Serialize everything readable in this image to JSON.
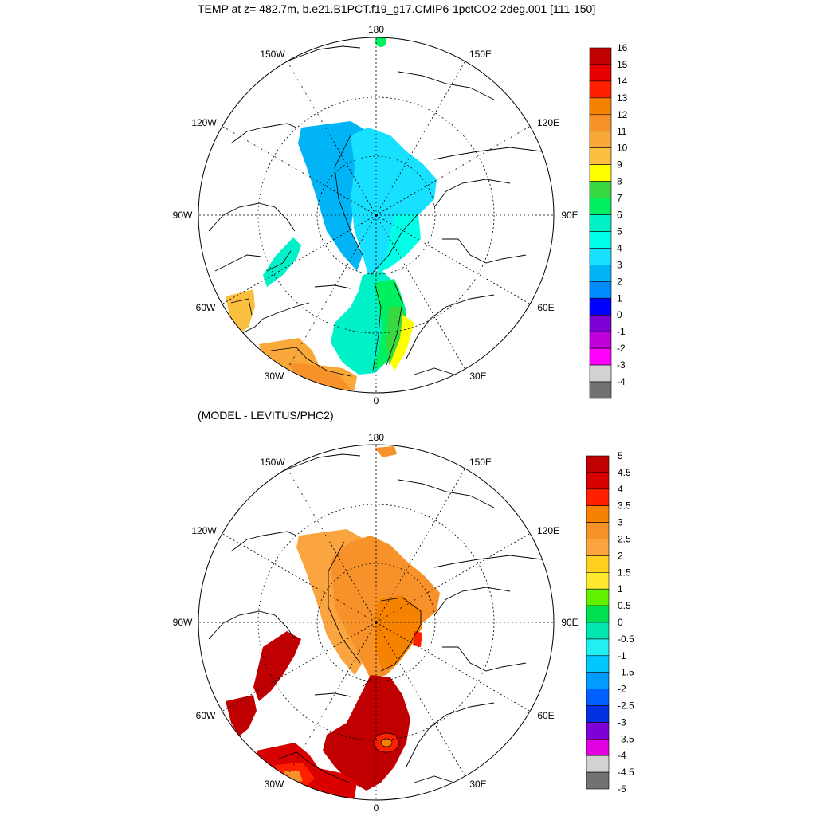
{
  "top_panel": {
    "title": "TEMP at z= 482.7m, b.e21.B1PCT.f19_g17.CMIP6-1pctCO2-2deg.001 [111-150]",
    "longitude_labels": {
      "lon180": "180",
      "lon150w": "150W",
      "lon150e": "150E",
      "lon120w": "120W",
      "lon120e": "120E",
      "lon90w": "90W",
      "lon90e": "90E",
      "lon60w": "60W",
      "lon60e": "60E",
      "lon30w": "30W",
      "lon30e": "30E",
      "lon0": "0"
    },
    "colorbar": {
      "labels": [
        "16",
        "15",
        "14",
        "13",
        "12",
        "11",
        "10",
        "9",
        "8",
        "7",
        "6",
        "5",
        "4",
        "3",
        "2",
        "1",
        "0",
        "-1",
        "-2",
        "-3",
        "-4"
      ],
      "colors": [
        "#c00000",
        "#e60000",
        "#ff2000",
        "#f58200",
        "#f7922a",
        "#f9a93a",
        "#fbbf40",
        "#ffff00",
        "#38d840",
        "#00f060",
        "#00f0c8",
        "#00ffe6",
        "#18e0ff",
        "#00b4f5",
        "#008cff",
        "#0000ff",
        "#7d00d4",
        "#c000d8",
        "#ff00ff",
        "#d2d2d2",
        "#727272"
      ]
    }
  },
  "bottom_panel": {
    "title": "(MODEL - LEVITUS/PHC2)",
    "longitude_labels": {
      "lon180": "180",
      "lon150w": "150W",
      "lon150e": "150E",
      "lon120w": "120W",
      "lon120e": "120E",
      "lon90w": "90W",
      "lon90e": "90E",
      "lon60w": "60W",
      "lon60e": "60E",
      "lon30w": "30W",
      "lon30e": "30E",
      "lon0": "0"
    },
    "colorbar": {
      "labels": [
        "5",
        "4.5",
        "4",
        "3.5",
        "3",
        "2.5",
        "2",
        "1.5",
        "1",
        "0.5",
        "0",
        "-0.5",
        "-1",
        "-1.5",
        "-2",
        "-2.5",
        "-3",
        "-3.5",
        "-4",
        "-4.5",
        "-5"
      ],
      "colors": [
        "#c00000",
        "#d80000",
        "#ff2000",
        "#f58200",
        "#f7922a",
        "#fba540",
        "#ffd020",
        "#ffe830",
        "#60f000",
        "#00e050",
        "#00e8b0",
        "#20f0f0",
        "#00c8ff",
        "#009cff",
        "#0060ff",
        "#0030e0",
        "#8000d8",
        "#e000e0",
        "#d2d2d2",
        "#727272"
      ]
    }
  },
  "colors": {
    "top_blue": "#00b4f5",
    "top_cyan": "#18e0ff",
    "top_aqua": "#00ffe6",
    "top_teal": "#00f0c8",
    "top_green": "#00f060",
    "top_green2": "#38d840",
    "top_yellow": "#ffff00",
    "top_orange_light": "#fbbf40",
    "top_orange": "#f9a93a",
    "top_orange_mid": "#f7922a",
    "diff_orange_light": "#fba540",
    "diff_orange": "#f7922a",
    "diff_orange_dark": "#f58200",
    "diff_red": "#c00000",
    "diff_red2": "#d80000",
    "diff_red3": "#ff2000"
  }
}
